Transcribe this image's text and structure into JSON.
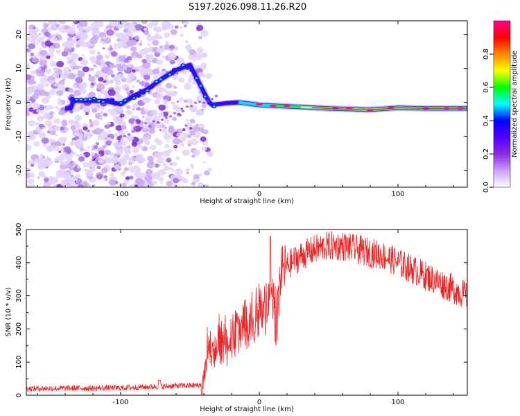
{
  "title": "S197.2026.098.11.26.R20",
  "chart_data": [
    {
      "type": "heatmap",
      "name": "spectrogram",
      "xlabel": "Height of straight line (km)",
      "ylabel": "Frequency (Hz)",
      "xlim": [
        -168,
        150
      ],
      "ylim": [
        -25,
        24
      ],
      "xticks": [
        -100,
        0,
        100
      ],
      "yticks": [
        -20,
        -10,
        0,
        10,
        20
      ],
      "colorbar": {
        "label": "Normalized spectral amplitude",
        "range": [
          0,
          1
        ],
        "ticks": [
          0.0,
          0.2,
          0.4,
          0.6,
          0.8
        ],
        "colormap": [
          "#ffffff",
          "#c9a0ff",
          "#8a2be2",
          "#5500ff",
          "#0000ff",
          "#00ffff",
          "#00ff00",
          "#ffff00",
          "#ff8800",
          "#ff0000",
          "#ff0090"
        ]
      },
      "ridge": [
        [
          -135,
          0.5
        ],
        [
          -120,
          0.5
        ],
        [
          -110,
          0.3
        ],
        [
          -100,
          -0.6
        ],
        [
          -90,
          2
        ],
        [
          -80,
          4
        ],
        [
          -70,
          7
        ],
        [
          -60,
          9.5
        ],
        [
          -50,
          11
        ],
        [
          -45,
          7
        ],
        [
          -40,
          3
        ],
        [
          -35,
          -0.8
        ],
        [
          -25,
          -0.3
        ],
        [
          -15,
          0
        ],
        [
          0,
          -0.8
        ],
        [
          20,
          -1.2
        ],
        [
          50,
          -1.8
        ],
        [
          80,
          -2.2
        ],
        [
          100,
          -1.6
        ],
        [
          120,
          -1.8
        ],
        [
          150,
          -1.8
        ]
      ],
      "noise_region_x": [
        -168,
        -50
      ]
    },
    {
      "type": "line",
      "name": "snr",
      "xlabel": "Height of straight line (km)",
      "ylabel": "SNR (10 * v/v)",
      "xlim": [
        -168,
        150
      ],
      "ylim": [
        0,
        500
      ],
      "xticks": [
        -100,
        0,
        100
      ],
      "yticks": [
        0,
        100,
        200,
        300,
        400,
        500
      ],
      "color": "#ee2222",
      "envelope": [
        [
          -168,
          20
        ],
        [
          -100,
          22
        ],
        [
          -60,
          28
        ],
        [
          -42,
          30
        ],
        [
          -38,
          180
        ],
        [
          -30,
          210
        ],
        [
          -20,
          240
        ],
        [
          -10,
          260
        ],
        [
          0,
          300
        ],
        [
          10,
          340
        ],
        [
          20,
          390
        ],
        [
          30,
          420
        ],
        [
          40,
          440
        ],
        [
          50,
          450
        ],
        [
          60,
          450
        ],
        [
          70,
          440
        ],
        [
          80,
          430
        ],
        [
          90,
          420
        ],
        [
          100,
          400
        ],
        [
          110,
          380
        ],
        [
          120,
          360
        ],
        [
          130,
          340
        ],
        [
          140,
          320
        ],
        [
          150,
          300
        ]
      ],
      "notable_points": [
        [
          -72,
          45
        ],
        [
          8,
          480
        ],
        [
          12,
          130
        ]
      ]
    }
  ]
}
